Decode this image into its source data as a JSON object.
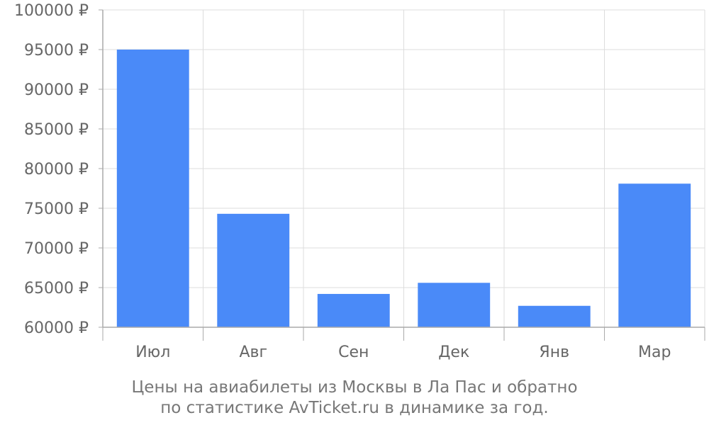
{
  "chart_data": {
    "type": "bar",
    "categories": [
      "Июл",
      "Авг",
      "Сен",
      "Дек",
      "Янв",
      "Мар"
    ],
    "values": [
      95000,
      74300,
      64200,
      65600,
      62700,
      78100
    ],
    "ylim": [
      60000,
      100000
    ],
    "ytick_step": 5000,
    "ytick_suffix": " ₽",
    "grid": true,
    "bar_color": "#4a8af8",
    "grid_color": "#dddddd",
    "axis_color": "#aaaaaa",
    "label_color": "#666666"
  },
  "caption": {
    "line1": "Цены на авиабилеты из Москвы в Ла Пас и обратно",
    "line2": "по статистике AvTicket.ru в динамике за год."
  }
}
